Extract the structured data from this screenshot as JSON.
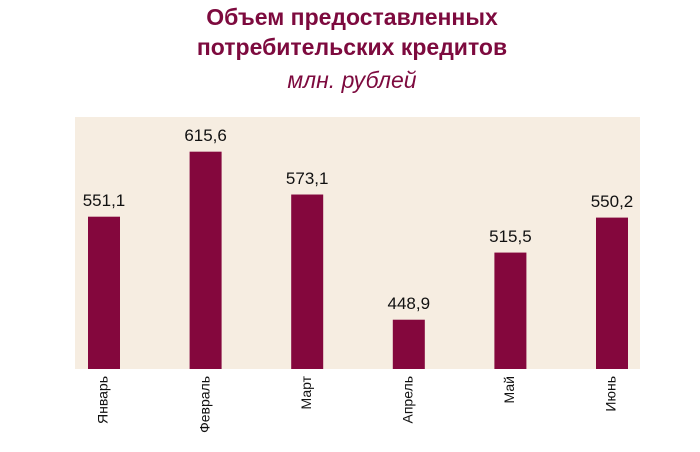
{
  "chart_data": {
    "type": "bar",
    "title": [
      "Объем предоставленных",
      "потребительских кредитов"
    ],
    "subtitle": "млн. рублей",
    "categories": [
      "Январь",
      "Февраль",
      "Март",
      "Апрель",
      "Май",
      "Июнь"
    ],
    "values": [
      551.1,
      615.6,
      573.1,
      448.9,
      515.5,
      550.2
    ],
    "value_labels": [
      "551,1",
      "615,6",
      "573,1",
      "448,9",
      "515,5",
      "550,2"
    ],
    "color": "#84073d",
    "ylim": [
      400,
      650
    ]
  }
}
